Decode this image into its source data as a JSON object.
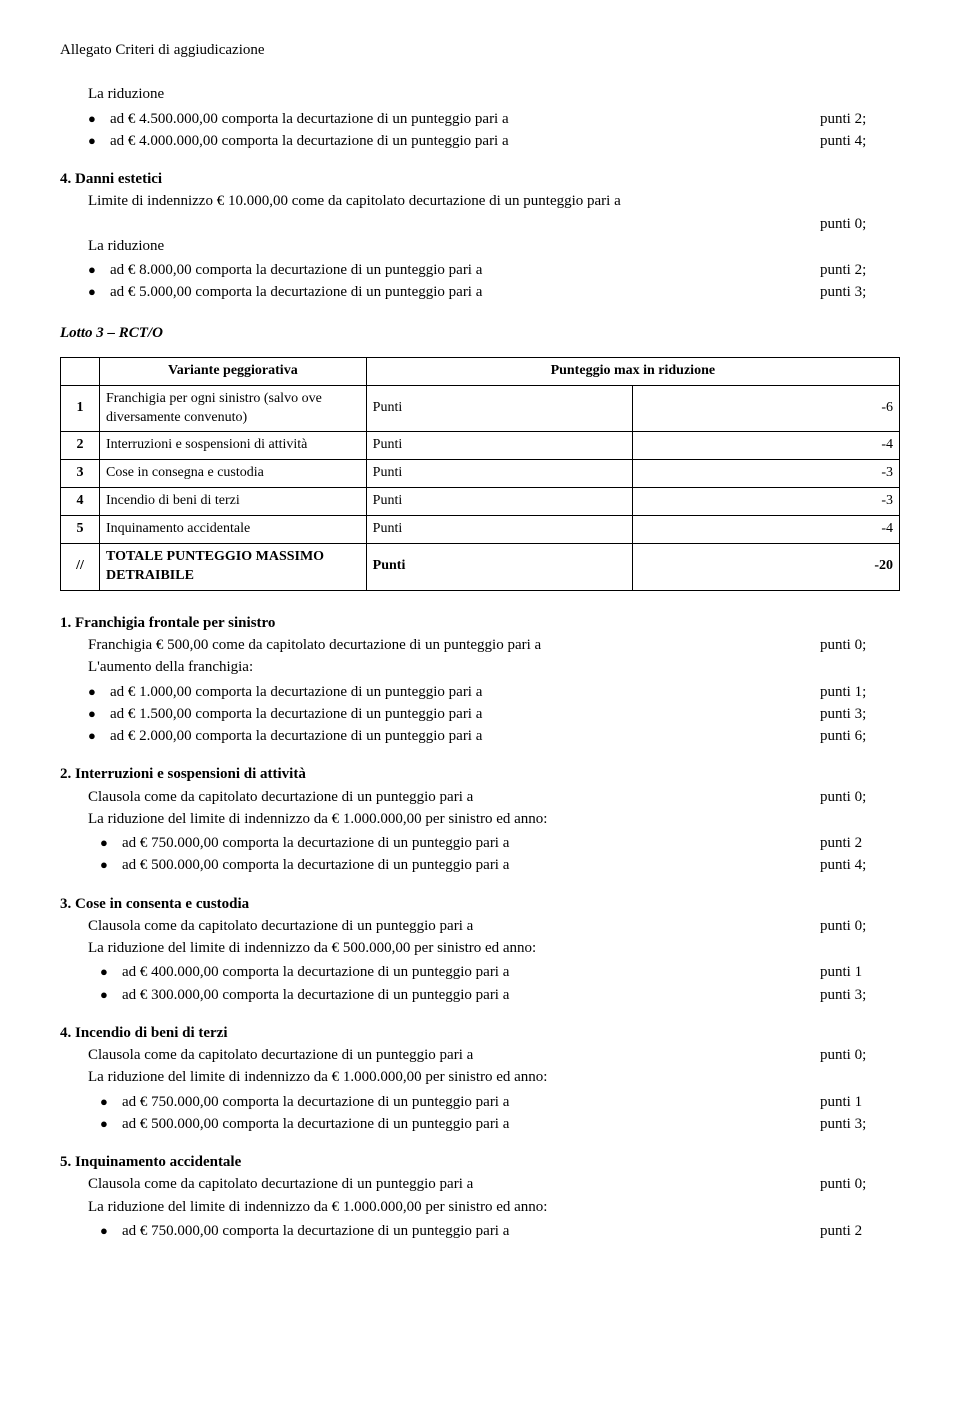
{
  "header": "Allegato Criteri di aggiudicazione",
  "intro": {
    "la_riduzione": "La riduzione",
    "lines": [
      {
        "text": "ad € 4.500.000,00 comporta la decurtazione di un punteggio pari a",
        "right": "punti 2;"
      },
      {
        "text": "ad € 4.000.000,00 comporta la decurtazione di un punteggio pari a",
        "right": "punti 4;"
      }
    ]
  },
  "danni": {
    "title": "4. Danni estetici",
    "limite_left": "Limite di indennizzo € 10.000,00 come da capitolato decurtazione di un punteggio pari a",
    "limite_right_indent": "punti 0;",
    "la_riduzione": "La riduzione",
    "lines": [
      {
        "text": "ad € 8.000,00 comporta la decurtazione di un punteggio pari a",
        "right": "punti 2;"
      },
      {
        "text": "ad € 5.000,00 comporta la decurtazione di un punteggio pari a",
        "right": "punti 3;"
      }
    ]
  },
  "lotto": {
    "title": "Lotto 3 – RCT/O",
    "header_variante": "Variante peggiorativa",
    "header_punt": "Punteggio max in riduzione",
    "rows": [
      {
        "n": "1",
        "desc": "Franchigia per ogni sinistro (salvo ove diversamente convenuto)",
        "plabel": "Punti",
        "pval": "-6"
      },
      {
        "n": "2",
        "desc": "Interruzioni e sospensioni di attività",
        "plabel": "Punti",
        "pval": "-4"
      },
      {
        "n": "3",
        "desc": "Cose in consegna e custodia",
        "plabel": "Punti",
        "pval": "-3"
      },
      {
        "n": "4",
        "desc": "Incendio di beni di terzi",
        "plabel": "Punti",
        "pval": "-3"
      },
      {
        "n": "5",
        "desc": "Inquinamento accidentale",
        "plabel": "Punti",
        "pval": "-4"
      }
    ],
    "total_n": "//",
    "total_desc": "TOTALE PUNTEGGIO MASSIMO DETRAIBILE",
    "total_plabel": "Punti",
    "total_pval": "-20"
  },
  "s1": {
    "title": "1. Franchigia frontale per sinistro",
    "line1_left": "Franchigia € 500,00 come da capitolato decurtazione di un punteggio pari a",
    "line1_right": "punti 0;",
    "aumento": "L'aumento della franchigia:",
    "bullets": [
      {
        "text": "ad € 1.000,00 comporta la decurtazione di un punteggio pari a",
        "right": "punti 1;"
      },
      {
        "text": "ad € 1.500,00 comporta la decurtazione di un punteggio pari a",
        "right": "punti 3;"
      },
      {
        "text": "ad € 2.000,00 comporta la decurtazione di un punteggio pari a",
        "right": "punti 6;"
      }
    ]
  },
  "s2": {
    "title": "2. Interruzioni e sospensioni di attività",
    "line1_left": "Clausola come da capitolato decurtazione di un punteggio pari a",
    "line1_right": "punti 0;",
    "line2": "La riduzione del limite di indennizzo da € 1.000.000,00 per sinistro ed anno:",
    "bullets": [
      {
        "text": "ad € 750.000,00 comporta la decurtazione di un punteggio pari a",
        "right": "punti 2"
      },
      {
        "text": "ad € 500.000,00 comporta la decurtazione di un punteggio pari a",
        "right": "punti 4;"
      }
    ]
  },
  "s3": {
    "title": "3. Cose in consenta e custodia",
    "line1_left": "Clausola come da capitolato decurtazione di un punteggio pari a",
    "line1_right": "punti 0;",
    "line2": "La riduzione del limite di indennizzo da € 500.000,00 per sinistro ed anno:",
    "bullets": [
      {
        "text": "ad € 400.000,00 comporta la decurtazione di un punteggio pari a",
        "right": "punti 1"
      },
      {
        "text": "ad € 300.000,00 comporta la decurtazione di un punteggio pari a",
        "right": "punti 3;"
      }
    ]
  },
  "s4": {
    "title": "4. Incendio di beni di terzi",
    "line1_left": "Clausola come da capitolato decurtazione di un punteggio pari a",
    "line1_right": "punti 0;",
    "line2": "La riduzione del limite di indennizzo da € 1.000.000,00 per sinistro ed anno:",
    "bullets": [
      {
        "text": "ad € 750.000,00 comporta la decurtazione di un punteggio pari a",
        "right": "punti 1"
      },
      {
        "text": "ad € 500.000,00 comporta la decurtazione di un punteggio pari a",
        "right": "punti 3;"
      }
    ]
  },
  "s5": {
    "title": "5. Inquinamento accidentale",
    "line1_left": "Clausola come da capitolato decurtazione di un punteggio pari a",
    "line1_right": "punti 0;",
    "line2": "La riduzione del limite di indennizzo da € 1.000.000,00 per sinistro ed anno:",
    "bullets": [
      {
        "text": "ad € 750.000,00 comporta la decurtazione di un punteggio pari a",
        "right": "punti 2"
      }
    ]
  }
}
